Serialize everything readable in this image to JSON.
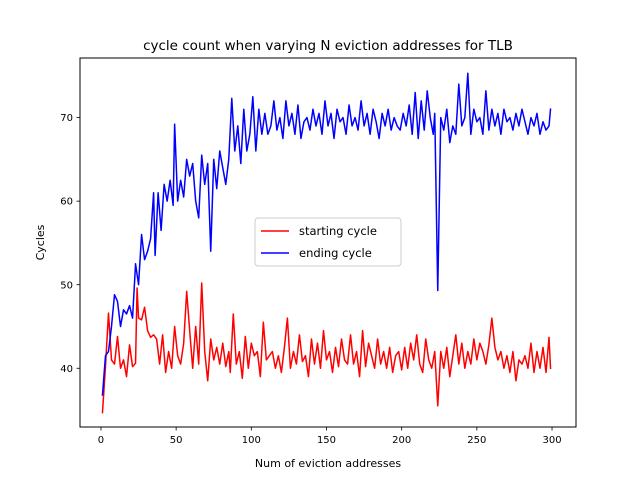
{
  "chart_data": {
    "type": "line",
    "title": "cycle count when varying N eviction addresses for TLB",
    "xlabel": "Num of eviction addresses",
    "ylabel": "Cycles",
    "xlim": [
      -13.95,
      315.95
    ],
    "ylim": [
      32.97,
      77.13
    ],
    "xticks": [
      0,
      50,
      100,
      150,
      200,
      250,
      300
    ],
    "yticks": [
      40,
      50,
      60,
      70
    ],
    "grid": false,
    "legend_position": "center",
    "series": [
      {
        "name": "starting cycle",
        "color": "#ff0000",
        "points": [
          [
            1,
            34.7
          ],
          [
            3,
            40.2
          ],
          [
            5,
            46.6
          ],
          [
            7,
            41.0
          ],
          [
            9,
            40.5
          ],
          [
            11,
            43.8
          ],
          [
            13,
            40.0
          ],
          [
            15,
            41.0
          ],
          [
            17,
            39.0
          ],
          [
            19,
            42.8
          ],
          [
            21,
            40.2
          ],
          [
            23,
            40.6
          ],
          [
            24,
            49.6
          ],
          [
            25,
            46.0
          ],
          [
            27,
            45.8
          ],
          [
            29,
            47.3
          ],
          [
            31,
            44.5
          ],
          [
            33,
            43.7
          ],
          [
            35,
            44.0
          ],
          [
            37,
            43.5
          ],
          [
            39,
            40.5
          ],
          [
            41,
            44.0
          ],
          [
            43,
            39.5
          ],
          [
            45,
            42.0
          ],
          [
            47,
            40.0
          ],
          [
            49,
            45.0
          ],
          [
            51,
            41.5
          ],
          [
            53,
            40.5
          ],
          [
            55,
            43.0
          ],
          [
            57,
            49.2
          ],
          [
            59,
            44.5
          ],
          [
            61,
            40.0
          ],
          [
            63,
            45.0
          ],
          [
            65,
            40.5
          ],
          [
            67,
            50.2
          ],
          [
            69,
            42.0
          ],
          [
            71,
            38.5
          ],
          [
            73,
            43.5
          ],
          [
            75,
            41.0
          ],
          [
            77,
            42.5
          ],
          [
            79,
            40.5
          ],
          [
            81,
            43.0
          ],
          [
            83,
            40.2
          ],
          [
            85,
            42.0
          ],
          [
            86,
            39.5
          ],
          [
            88,
            46.5
          ],
          [
            90,
            40.5
          ],
          [
            92,
            42.0
          ],
          [
            94,
            38.8
          ],
          [
            96,
            43.8
          ],
          [
            98,
            40.0
          ],
          [
            100,
            43.0
          ],
          [
            102,
            41.5
          ],
          [
            104,
            42.0
          ],
          [
            106,
            39.0
          ],
          [
            108,
            45.5
          ],
          [
            110,
            41.0
          ],
          [
            112,
            41.5
          ],
          [
            114,
            42.0
          ],
          [
            116,
            40.0
          ],
          [
            118,
            41.5
          ],
          [
            120,
            39.5
          ],
          [
            122,
            42.5
          ],
          [
            124,
            46.0
          ],
          [
            126,
            40.0
          ],
          [
            128,
            42.0
          ],
          [
            130,
            40.5
          ],
          [
            132,
            44.0
          ],
          [
            134,
            40.8
          ],
          [
            136,
            41.5
          ],
          [
            138,
            39.0
          ],
          [
            140,
            43.5
          ],
          [
            142,
            40.5
          ],
          [
            144,
            43.0
          ],
          [
            146,
            40.0
          ],
          [
            148,
            44.5
          ],
          [
            150,
            41.0
          ],
          [
            152,
            42.0
          ],
          [
            154,
            39.5
          ],
          [
            156,
            42.5
          ],
          [
            158,
            40.2
          ],
          [
            160,
            43.5
          ],
          [
            162,
            41.0
          ],
          [
            164,
            40.5
          ],
          [
            166,
            44.0
          ],
          [
            168,
            40.5
          ],
          [
            170,
            42.0
          ],
          [
            172,
            39.0
          ],
          [
            174,
            44.5
          ],
          [
            176,
            40.2
          ],
          [
            178,
            43.0
          ],
          [
            180,
            41.5
          ],
          [
            182,
            40.0
          ],
          [
            184,
            43.5
          ],
          [
            186,
            40.5
          ],
          [
            188,
            42.0
          ],
          [
            190,
            40.0
          ],
          [
            192,
            42.5
          ],
          [
            194,
            39.5
          ],
          [
            196,
            41.5
          ],
          [
            198,
            42.0
          ],
          [
            200,
            39.8
          ],
          [
            202,
            42.5
          ],
          [
            204,
            40.0
          ],
          [
            206,
            43.0
          ],
          [
            208,
            41.0
          ],
          [
            210,
            44.0
          ],
          [
            212,
            40.5
          ],
          [
            214,
            39.5
          ],
          [
            216,
            43.5
          ],
          [
            218,
            41.0
          ],
          [
            220,
            40.0
          ],
          [
            222,
            42.0
          ],
          [
            224,
            35.5
          ],
          [
            226,
            42.0
          ],
          [
            228,
            40.0
          ],
          [
            230,
            42.5
          ],
          [
            232,
            39.0
          ],
          [
            234,
            41.5
          ],
          [
            236,
            44.0
          ],
          [
            238,
            40.5
          ],
          [
            240,
            43.0
          ],
          [
            242,
            40.0
          ],
          [
            244,
            42.0
          ],
          [
            246,
            40.5
          ],
          [
            248,
            43.5
          ],
          [
            250,
            41.0
          ],
          [
            252,
            43.0
          ],
          [
            254,
            42.0
          ],
          [
            256,
            40.5
          ],
          [
            258,
            42.8
          ],
          [
            260,
            46.0
          ],
          [
            262,
            42.5
          ],
          [
            264,
            41.0
          ],
          [
            266,
            42.0
          ],
          [
            268,
            40.0
          ],
          [
            270,
            41.5
          ],
          [
            272,
            39.5
          ],
          [
            274,
            42.0
          ],
          [
            276,
            38.5
          ],
          [
            278,
            41.0
          ],
          [
            280,
            40.5
          ],
          [
            282,
            41.5
          ],
          [
            284,
            40.0
          ],
          [
            286,
            43.0
          ],
          [
            288,
            39.5
          ],
          [
            290,
            42.0
          ],
          [
            292,
            40.0
          ],
          [
            294,
            42.5
          ],
          [
            296,
            39.5
          ],
          [
            298,
            43.7
          ],
          [
            299,
            40.0
          ]
        ]
      },
      {
        "name": "ending cycle",
        "color": "#0000ff",
        "points": [
          [
            1,
            36.8
          ],
          [
            3,
            41.5
          ],
          [
            5,
            42.0
          ],
          [
            7,
            45.0
          ],
          [
            9,
            48.8
          ],
          [
            11,
            48.0
          ],
          [
            13,
            45.0
          ],
          [
            15,
            47.0
          ],
          [
            17,
            46.5
          ],
          [
            19,
            47.5
          ],
          [
            21,
            46.0
          ],
          [
            23,
            52.5
          ],
          [
            25,
            50.0
          ],
          [
            27,
            56.0
          ],
          [
            29,
            53.0
          ],
          [
            31,
            54.0
          ],
          [
            33,
            55.5
          ],
          [
            35,
            61.0
          ],
          [
            36,
            53.5
          ],
          [
            38,
            61.0
          ],
          [
            40,
            56.5
          ],
          [
            42,
            62.0
          ],
          [
            44,
            60.0
          ],
          [
            46,
            62.5
          ],
          [
            48,
            59.5
          ],
          [
            49,
            69.2
          ],
          [
            51,
            60.0
          ],
          [
            53,
            62.5
          ],
          [
            55,
            60.5
          ],
          [
            57,
            65.0
          ],
          [
            59,
            63.0
          ],
          [
            61,
            64.5
          ],
          [
            63,
            60.0
          ],
          [
            65,
            58.0
          ],
          [
            67,
            65.5
          ],
          [
            69,
            62.0
          ],
          [
            71,
            64.5
          ],
          [
            73,
            54.0
          ],
          [
            75,
            65.0
          ],
          [
            77,
            61.5
          ],
          [
            79,
            66.0
          ],
          [
            81,
            64.0
          ],
          [
            83,
            62.0
          ],
          [
            85,
            65.0
          ],
          [
            87,
            72.3
          ],
          [
            89,
            66.0
          ],
          [
            91,
            69.0
          ],
          [
            93,
            64.5
          ],
          [
            95,
            71.0
          ],
          [
            97,
            66.0
          ],
          [
            99,
            68.0
          ],
          [
            101,
            72.5
          ],
          [
            103,
            66.0
          ],
          [
            105,
            71.0
          ],
          [
            107,
            68.0
          ],
          [
            109,
            70.5
          ],
          [
            111,
            68.0
          ],
          [
            113,
            69.0
          ],
          [
            115,
            72.0
          ],
          [
            117,
            68.5
          ],
          [
            119,
            70.0
          ],
          [
            121,
            67.5
          ],
          [
            123,
            72.0
          ],
          [
            125,
            69.0
          ],
          [
            127,
            70.5
          ],
          [
            129,
            68.0
          ],
          [
            131,
            71.5
          ],
          [
            133,
            67.5
          ],
          [
            135,
            69.5
          ],
          [
            137,
            70.0
          ],
          [
            139,
            68.5
          ],
          [
            141,
            71.0
          ],
          [
            143,
            69.0
          ],
          [
            145,
            70.5
          ],
          [
            147,
            68.0
          ],
          [
            149,
            72.0
          ],
          [
            151,
            69.0
          ],
          [
            153,
            70.5
          ],
          [
            155,
            67.5
          ],
          [
            157,
            71.0
          ],
          [
            159,
            69.5
          ],
          [
            161,
            70.0
          ],
          [
            163,
            68.0
          ],
          [
            165,
            71.5
          ],
          [
            167,
            69.0
          ],
          [
            169,
            70.0
          ],
          [
            171,
            68.5
          ],
          [
            173,
            72.0
          ],
          [
            175,
            69.0
          ],
          [
            177,
            70.5
          ],
          [
            179,
            68.0
          ],
          [
            181,
            71.0
          ],
          [
            183,
            69.5
          ],
          [
            185,
            67.5
          ],
          [
            187,
            70.5
          ],
          [
            189,
            69.0
          ],
          [
            191,
            71.0
          ],
          [
            193,
            68.5
          ],
          [
            195,
            70.0
          ],
          [
            197,
            69.0
          ],
          [
            199,
            68.5
          ],
          [
            201,
            70.5
          ],
          [
            203,
            69.0
          ],
          [
            205,
            71.5
          ],
          [
            207,
            68.0
          ],
          [
            209,
            73.0
          ],
          [
            211,
            67.5
          ],
          [
            213,
            72.0
          ],
          [
            215,
            68.5
          ],
          [
            217,
            73.2
          ],
          [
            219,
            70.0
          ],
          [
            221,
            68.0
          ],
          [
            222,
            70.5
          ],
          [
            224,
            49.3
          ],
          [
            226,
            70.0
          ],
          [
            228,
            68.5
          ],
          [
            230,
            71.0
          ],
          [
            232,
            67.0
          ],
          [
            234,
            69.0
          ],
          [
            236,
            68.0
          ],
          [
            238,
            74.0
          ],
          [
            240,
            69.0
          ],
          [
            242,
            70.0
          ],
          [
            244,
            75.3
          ],
          [
            246,
            68.0
          ],
          [
            248,
            71.0
          ],
          [
            250,
            69.5
          ],
          [
            252,
            70.0
          ],
          [
            254,
            68.0
          ],
          [
            256,
            73.2
          ],
          [
            258,
            68.5
          ],
          [
            260,
            71.0
          ],
          [
            262,
            69.0
          ],
          [
            264,
            70.5
          ],
          [
            266,
            68.0
          ],
          [
            268,
            71.0
          ],
          [
            270,
            69.5
          ],
          [
            272,
            70.0
          ],
          [
            274,
            68.5
          ],
          [
            276,
            70.5
          ],
          [
            278,
            69.0
          ],
          [
            280,
            71.0
          ],
          [
            282,
            69.5
          ],
          [
            284,
            68.0
          ],
          [
            286,
            70.0
          ],
          [
            288,
            69.0
          ],
          [
            290,
            70.5
          ],
          [
            292,
            68.0
          ],
          [
            294,
            69.5
          ],
          [
            296,
            68.5
          ],
          [
            298,
            69.0
          ],
          [
            299,
            71.0
          ]
        ]
      }
    ]
  }
}
